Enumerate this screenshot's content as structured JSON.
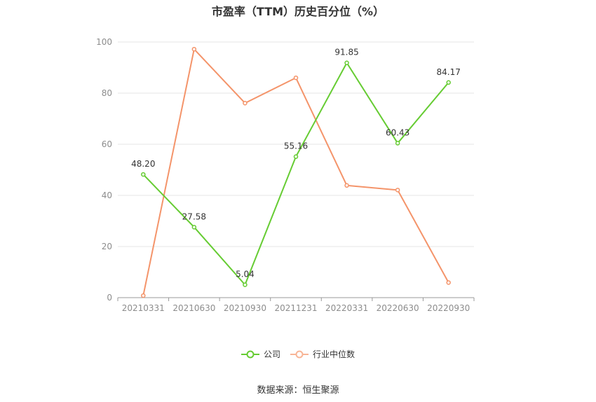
{
  "chart_data": {
    "type": "line",
    "title": "市盈率（TTM）历史百分位（%）",
    "categories": [
      "20210331",
      "20210630",
      "20210930",
      "20211231",
      "20220331",
      "20220630",
      "20220930"
    ],
    "series": [
      {
        "name": "公司",
        "color": "#66cc33",
        "values": [
          48.2,
          27.58,
          5.04,
          55.16,
          91.85,
          60.43,
          84.17
        ],
        "labels": [
          "48.20",
          "27.58",
          "5.04",
          "55.16",
          "91.85",
          "60.43",
          "84.17"
        ]
      },
      {
        "name": "行业中位数",
        "color": "#f4946a",
        "values": [
          0.8,
          97.2,
          76.1,
          86.0,
          43.9,
          42.1,
          5.9
        ]
      }
    ],
    "yticks": [
      "0",
      "20",
      "40",
      "60",
      "80",
      "100"
    ],
    "ylim": [
      0,
      100
    ],
    "xlabel": "",
    "ylabel": "",
    "grid": true,
    "legend_position": "bottom"
  },
  "source": "数据来源：恒生聚源"
}
